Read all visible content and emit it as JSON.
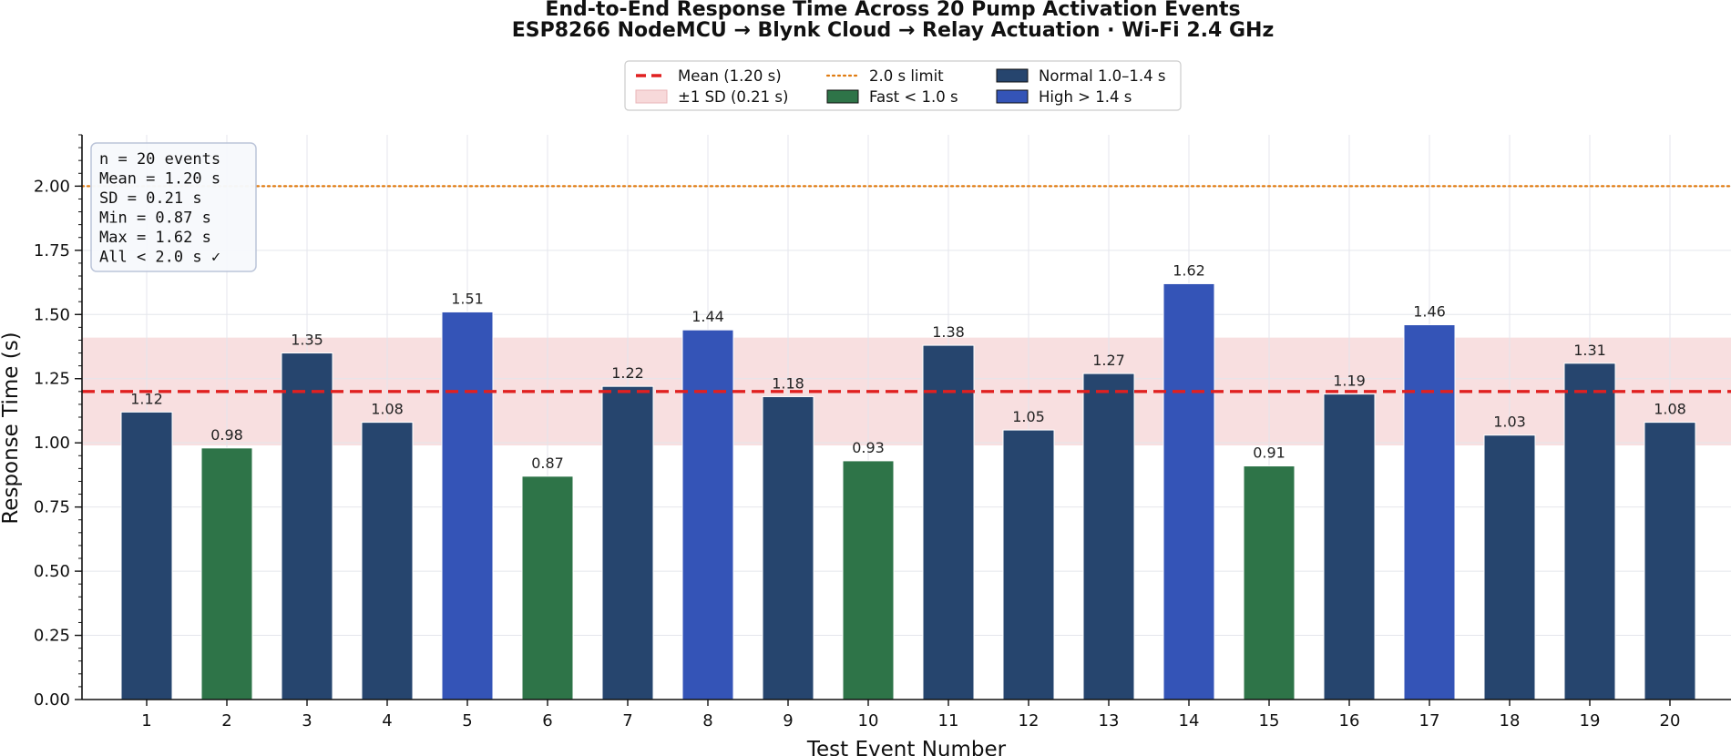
{
  "chart_data": {
    "type": "bar",
    "title_line1": "End-to-End Response Time Across 20 Pump Activation Events",
    "title_line2": "ESP8266 NodeMCU → Blynk Cloud → Relay Actuation · Wi-Fi 2.4 GHz",
    "xlabel": "Test Event Number",
    "ylabel": "Response Time (s)",
    "ylim": [
      0,
      2.2
    ],
    "yticks": [
      0.0,
      0.25,
      0.5,
      0.75,
      1.0,
      1.25,
      1.5,
      1.75,
      2.0
    ],
    "ytick_labels": [
      "0.00",
      "0.25",
      "0.50",
      "0.75",
      "1.00",
      "1.25",
      "1.50",
      "1.75",
      "2.00"
    ],
    "categories": [
      "1",
      "2",
      "3",
      "4",
      "5",
      "6",
      "7",
      "8",
      "9",
      "10",
      "11",
      "12",
      "13",
      "14",
      "15",
      "16",
      "17",
      "18",
      "19",
      "20"
    ],
    "values": [
      1.12,
      0.98,
      1.35,
      1.08,
      1.51,
      0.87,
      1.22,
      1.44,
      1.18,
      0.93,
      1.38,
      1.05,
      1.27,
      1.62,
      0.91,
      1.19,
      1.46,
      1.03,
      1.31,
      1.08
    ],
    "value_labels": [
      "1.12",
      "0.98",
      "1.35",
      "1.08",
      "1.51",
      "0.87",
      "1.22",
      "1.44",
      "1.18",
      "0.93",
      "1.38",
      "1.05",
      "1.27",
      "1.62",
      "0.91",
      "1.19",
      "1.46",
      "1.03",
      "1.31",
      "1.08"
    ],
    "grid": true,
    "mean": 1.2,
    "sd": 0.21,
    "limit": 2.0,
    "colors": {
      "normal": "#26456e",
      "fast": "#2e7448",
      "high": "#3454b7",
      "mean_line": "#e02020",
      "limit_line": "#e07b10",
      "sd_band": "#f7d9da"
    },
    "legend": {
      "placement": "top-center",
      "entries": [
        {
          "label": "Mean (1.20 s)",
          "kind": "dash-line",
          "color_key": "mean_line"
        },
        {
          "label": "±1 SD (0.21 s)",
          "kind": "band",
          "color_key": "sd_band"
        },
        {
          "label": "2.0 s limit",
          "kind": "dot-line",
          "color_key": "limit_line"
        },
        {
          "label": "Fast < 1.0 s",
          "kind": "patch",
          "color_key": "fast"
        },
        {
          "label": "Normal 1.0–1.4 s",
          "kind": "patch",
          "color_key": "normal"
        },
        {
          "label": "High > 1.4 s",
          "kind": "patch",
          "color_key": "high"
        }
      ]
    },
    "stats_box": {
      "placement": "top-left",
      "lines": [
        "n = 20 events",
        "Mean  = 1.20 s",
        "SD    = 0.21 s",
        "Min   = 0.87 s",
        "Max   = 1.62 s",
        "All < 2.0 s  ✓"
      ]
    }
  }
}
